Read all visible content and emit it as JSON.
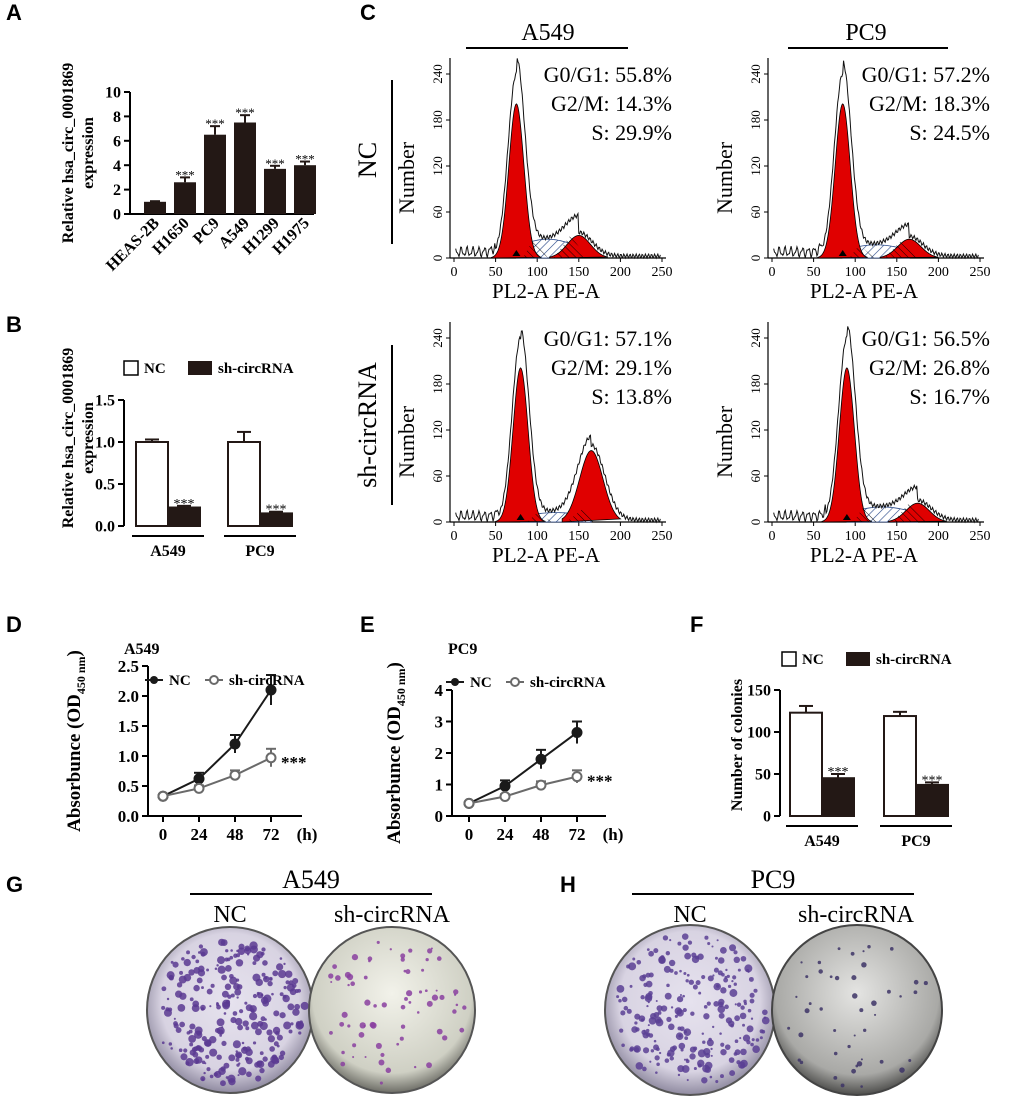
{
  "panel_labels": {
    "a": "A",
    "b": "B",
    "c": "C",
    "d": "D",
    "e": "E",
    "f": "F",
    "g": "G",
    "h": "H"
  },
  "colors": {
    "dark_bar": "#231815",
    "red_fill": "#e00000",
    "hatch": "#2a4a8a",
    "purple": "#5a3a92"
  },
  "chart_data": [
    {
      "panel": "A",
      "type": "bar",
      "ylabel_lines": [
        "Relative hsa_circ_0001869",
        "expression"
      ],
      "ylim": [
        0,
        10
      ],
      "yticks": [
        "0",
        "2",
        "4",
        "6",
        "8",
        "10"
      ],
      "categories": [
        "HEAS-2B",
        "H1650",
        "PC9",
        "A549",
        "H1299",
        "H1975"
      ],
      "values": [
        1.0,
        2.6,
        6.5,
        7.5,
        3.7,
        4.0
      ],
      "errors": [
        0.05,
        0.4,
        0.7,
        0.6,
        0.25,
        0.3
      ],
      "sig": [
        "",
        "***",
        "***",
        "***",
        "***",
        "***"
      ]
    },
    {
      "panel": "B",
      "type": "bar",
      "legend": [
        "NC",
        "sh-circRNA"
      ],
      "ylabel_lines": [
        "Relative hsa_circ_0001869",
        "expression"
      ],
      "ylim": [
        0,
        1.5
      ],
      "yticks": [
        "0.0",
        "0.5",
        "1.0",
        "1.5"
      ],
      "groups": [
        "A549",
        "PC9"
      ],
      "series": [
        {
          "name": "NC",
          "values": [
            1.0,
            1.0
          ],
          "errors": [
            0.03,
            0.12
          ]
        },
        {
          "name": "sh-circRNA",
          "values": [
            0.22,
            0.15
          ],
          "errors": [
            0.02,
            0.02
          ]
        }
      ],
      "sig": [
        "***",
        "***"
      ]
    },
    {
      "panel": "C",
      "type": "histogram",
      "columns": [
        "A549",
        "PC9"
      ],
      "rows": [
        "NC",
        "sh-circRNA"
      ],
      "ylabel": "Number",
      "xlabel": "PL2-A  PE-A",
      "xticks": [
        "0",
        "50",
        "100",
        "150",
        "200",
        "250"
      ],
      "yticks": [
        "0",
        "60",
        "120",
        "180",
        "240"
      ],
      "plots": [
        {
          "lines": [
            "G0/G1: 55.8%",
            "G2/M: 14.3%",
            "S: 29.9%"
          ],
          "g1": 75,
          "g2": 150,
          "g2h": 0.12,
          "sh": 0.1
        },
        {
          "lines": [
            "G0/G1: 57.2%",
            "G2/M: 18.3%",
            "S: 24.5%"
          ],
          "g1": 85,
          "g2": 165,
          "g2h": 0.1,
          "sh": 0.07
        },
        {
          "lines": [
            "G0/G1: 57.1%",
            "G2/M: 29.1%",
            "S: 13.8%"
          ],
          "g1": 80,
          "g2": 165,
          "g2h": 0.38,
          "sh": 0.05
        },
        {
          "lines": [
            "G0/G1: 56.5%",
            "G2/M: 26.8%",
            "S: 16.7%"
          ],
          "g1": 90,
          "g2": 175,
          "g2h": 0.1,
          "sh": 0.08
        }
      ]
    },
    {
      "panel": "D",
      "type": "line",
      "title": "A549",
      "ylabel": "Absorbunce (OD",
      "ylabel_sub": "450 nm",
      "ylabel_end": ")",
      "ylim": [
        0,
        2.5
      ],
      "yticks": [
        "0.0",
        "0.5",
        "1.0",
        "1.5",
        "2.0",
        "2.5"
      ],
      "x": [
        0,
        24,
        48,
        72
      ],
      "xticks": [
        "0",
        "24",
        "48",
        "72"
      ],
      "xunit": "(h)",
      "series": [
        {
          "name": "NC",
          "values": [
            0.33,
            0.62,
            1.2,
            2.1
          ],
          "errors": [
            0.03,
            0.1,
            0.15,
            0.25
          ]
        },
        {
          "name": "sh-circRNA",
          "values": [
            0.33,
            0.46,
            0.68,
            0.97
          ],
          "errors": [
            0.03,
            0.05,
            0.08,
            0.15
          ]
        }
      ],
      "sig": "***"
    },
    {
      "panel": "E",
      "type": "line",
      "title": "PC9",
      "ylabel": "Absorbunce (OD",
      "ylabel_sub": "450 nm",
      "ylabel_end": ")",
      "ylim": [
        0,
        4
      ],
      "yticks": [
        "0",
        "1",
        "2",
        "3",
        "4"
      ],
      "x": [
        0,
        24,
        48,
        72
      ],
      "xticks": [
        "0",
        "24",
        "48",
        "72"
      ],
      "xunit": "(h)",
      "series": [
        {
          "name": "NC",
          "values": [
            0.4,
            0.95,
            1.8,
            2.65
          ],
          "errors": [
            0.05,
            0.18,
            0.3,
            0.35
          ]
        },
        {
          "name": "sh-circRNA",
          "values": [
            0.4,
            0.62,
            0.98,
            1.25
          ],
          "errors": [
            0.05,
            0.07,
            0.12,
            0.2
          ]
        }
      ],
      "sig": "***"
    },
    {
      "panel": "F",
      "type": "bar",
      "legend": [
        "NC",
        "sh-circRNA"
      ],
      "ylabel": "Number of colonies",
      "ylim": [
        0,
        150
      ],
      "yticks": [
        "0",
        "50",
        "100",
        "150"
      ],
      "groups": [
        "A549",
        "PC9"
      ],
      "series": [
        {
          "name": "NC",
          "values": [
            123,
            119
          ],
          "errors": [
            8,
            5
          ]
        },
        {
          "name": "sh-circRNA",
          "values": [
            45,
            37
          ],
          "errors": [
            5,
            3
          ]
        }
      ],
      "sig": [
        "***",
        "***"
      ]
    }
  ],
  "plates": {
    "G": {
      "title": "A549",
      "left": "NC",
      "right": "sh-circRNA"
    },
    "H": {
      "title": "PC9",
      "left": "NC",
      "right": "sh-circRNA"
    }
  }
}
